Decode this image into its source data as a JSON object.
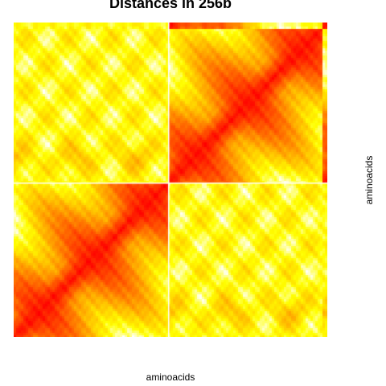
{
  "chart_data": {
    "type": "heatmap",
    "title": "Distances in 256b",
    "xlabel": "aminoacids",
    "ylabel": "aminoacids",
    "n": 130,
    "domain_boundary": 64,
    "x_reversed": false,
    "y_reversed": true,
    "colormap": "heat",
    "colors": {
      "low": "#FF0000",
      "mid": "#FF8000",
      "high": "#FFFF00",
      "max": "#FFFFFF",
      "gap": "#FFFFFF"
    },
    "gaps": [
      64
    ],
    "grid": false,
    "legend": "none"
  }
}
